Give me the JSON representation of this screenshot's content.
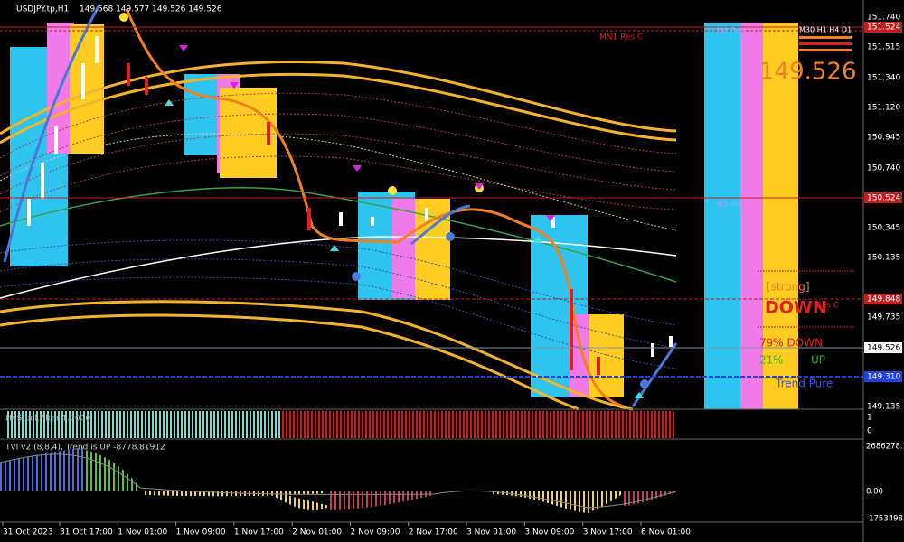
{
  "header": {
    "symbol": "USDJPY.tp,H1",
    "ohlc": "149.568 149.577 149.526 149.526"
  },
  "levels": {
    "mn1": "MN1 Res C",
    "h4": "H4 Res",
    "h1": "H1 Res",
    "res_c": "Res C"
  },
  "panel": {
    "timeframes": "M30 H1 H4 D1",
    "price": "149.526",
    "strength": "[strong]",
    "direction": "DOWN",
    "down_pct": "79% DOWN",
    "up_pct": "21%",
    "up": "UP",
    "trend": "Trend Pure"
  },
  "price_axis": [
    "151.740",
    "151.524",
    "151.515",
    "151.340",
    "151.120",
    "150.945",
    "150.740",
    "150.524",
    "150.345",
    "150.135",
    "149.848",
    "149.735",
    "149.526",
    "149.310",
    "149.135"
  ],
  "filter": {
    "title": "H4StockFilter 1.0000",
    "axis": [
      "1",
      "0"
    ]
  },
  "tvi": {
    "title": "TVI v2 (8,8,4), Trend is UP -8778.81912",
    "axis": [
      "2686278.1",
      "0.00",
      "-1753498."
    ]
  },
  "time_axis": [
    "31 Oct 2023",
    "31 Oct 17:00",
    "1 Nov 01:00",
    "1 Nov 09:00",
    "1 Nov 17:00",
    "2 Nov 01:00",
    "2 Nov 09:00",
    "2 Nov 17:00",
    "3 Nov 01:00",
    "3 Nov 09:00",
    "3 Nov 17:00",
    "6 Nov 01:00"
  ]
}
